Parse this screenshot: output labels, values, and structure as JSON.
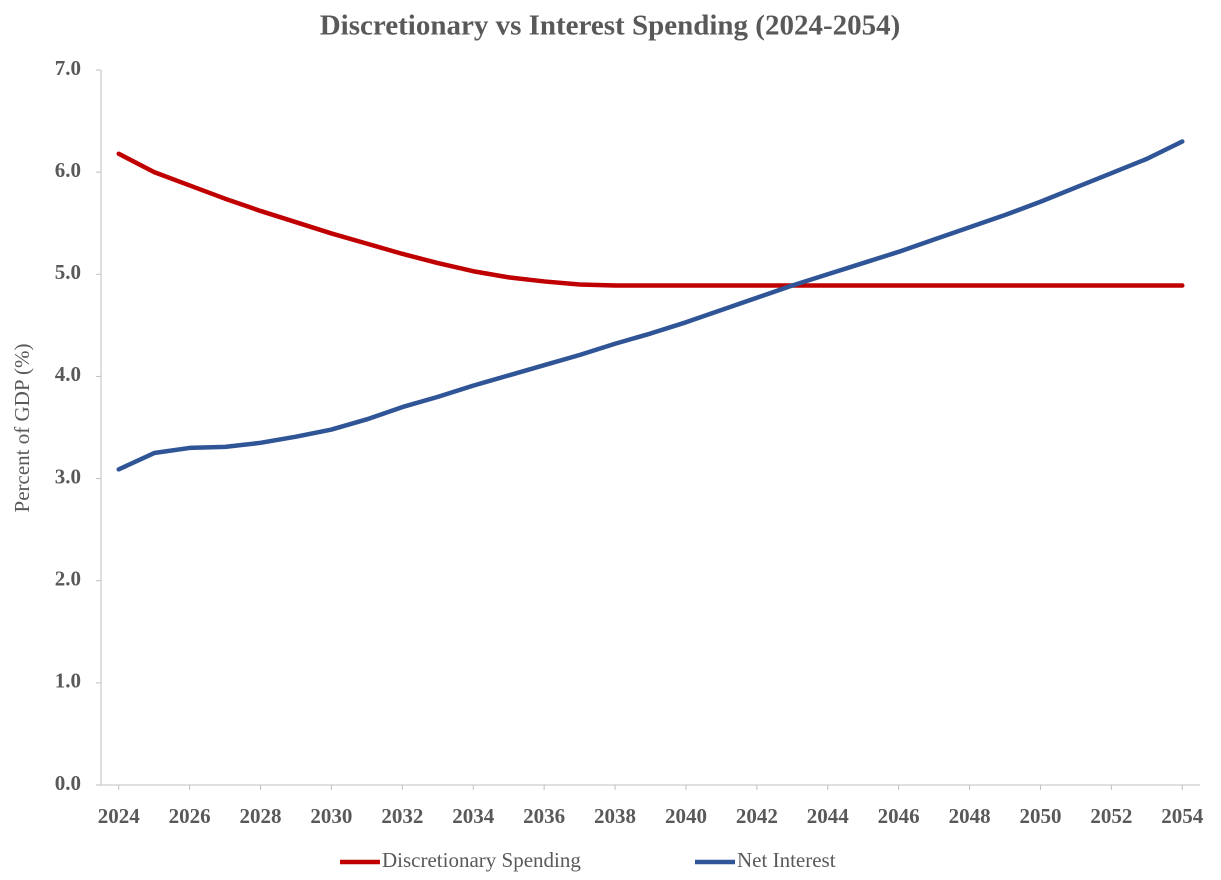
{
  "chart_data": {
    "type": "line",
    "title": "Discretionary vs Interest Spending (2024-2054)",
    "y_label": "Percent of GDP (%)",
    "x": [
      2024,
      2025,
      2026,
      2027,
      2028,
      2029,
      2030,
      2031,
      2032,
      2033,
      2034,
      2035,
      2036,
      2037,
      2038,
      2039,
      2040,
      2041,
      2042,
      2043,
      2044,
      2045,
      2046,
      2047,
      2048,
      2049,
      2050,
      2051,
      2052,
      2053,
      2054
    ],
    "series": [
      {
        "name": "Discretionary Spending",
        "color": "#c00000",
        "values": [
          6.18,
          6.0,
          5.87,
          5.74,
          5.62,
          5.51,
          5.4,
          5.3,
          5.2,
          5.11,
          5.03,
          4.97,
          4.93,
          4.9,
          4.89,
          4.89,
          4.89,
          4.89,
          4.89,
          4.89,
          4.89,
          4.89,
          4.89,
          4.89,
          4.89,
          4.89,
          4.89,
          4.89,
          4.89,
          4.89,
          4.89
        ]
      },
      {
        "name": "Net Interest",
        "color": "#2f5597",
        "values": [
          3.09,
          3.25,
          3.3,
          3.31,
          3.35,
          3.41,
          3.48,
          3.58,
          3.7,
          3.8,
          3.91,
          4.01,
          4.11,
          4.21,
          4.32,
          4.42,
          4.53,
          4.65,
          4.77,
          4.89,
          5.0,
          5.11,
          5.22,
          5.34,
          5.46,
          5.58,
          5.71,
          5.85,
          5.99,
          6.13,
          6.3
        ]
      }
    ],
    "xlim": [
      2023.5,
      2054.5
    ],
    "xticks": [
      2024,
      2026,
      2028,
      2030,
      2032,
      2034,
      2036,
      2038,
      2040,
      2042,
      2044,
      2046,
      2048,
      2050,
      2052,
      2054
    ],
    "ylim": [
      0,
      7
    ],
    "yticks": [
      {
        "value": 0,
        "label": "0.0"
      },
      {
        "value": 1,
        "label": "1.0"
      },
      {
        "value": 2,
        "label": "2.0"
      },
      {
        "value": 3,
        "label": "3.0"
      },
      {
        "value": 4,
        "label": "4.0"
      },
      {
        "value": 5,
        "label": "5.0"
      },
      {
        "value": 6,
        "label": "6.0"
      },
      {
        "value": 7,
        "label": "7.0"
      }
    ],
    "grid": false,
    "legend": "bottom"
  }
}
